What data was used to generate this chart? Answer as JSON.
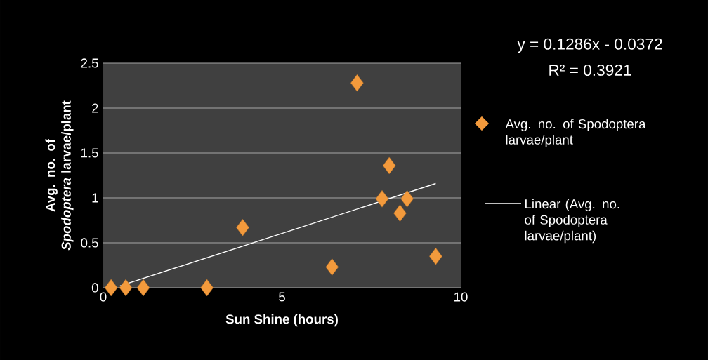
{
  "chart_data": {
    "type": "scatter",
    "xlabel": "Sun Shine (hours)",
    "ylabel": "Avg. no. of *Spodoptera* larvae/plant",
    "xlim": [
      0,
      10
    ],
    "xticks": [
      0,
      5,
      10
    ],
    "ylim": [
      0,
      2.5
    ],
    "yticks": [
      0,
      0.5,
      1,
      1.5,
      2,
      2.5
    ],
    "grid": "y",
    "legend": "right",
    "series": [
      {
        "name": "Avg. no. of Spodoptera larvae/plant",
        "type": "scatter",
        "marker": "diamond",
        "color": "#f39a3c",
        "x": [
          0.22,
          0.63,
          1.12,
          2.9,
          3.9,
          6.4,
          7.1,
          8.0,
          7.8,
          8.5,
          8.3,
          9.3
        ],
        "values": [
          0,
          0,
          0,
          0,
          0.67,
          0.23,
          2.28,
          1.36,
          0.99,
          0.99,
          0.83,
          0.35
        ]
      },
      {
        "name": "Linear (Avg. no. of Spodoptera larvae/plant)",
        "type": "line",
        "marker": "none",
        "line_style": "solid",
        "color": "#ffffff",
        "x": [
          0.47,
          9.3
        ],
        "values": [
          0.02,
          1.16
        ]
      }
    ],
    "annotations": [
      "y = 0.1286x - 0.0372",
      "R² = 0.3921"
    ]
  }
}
